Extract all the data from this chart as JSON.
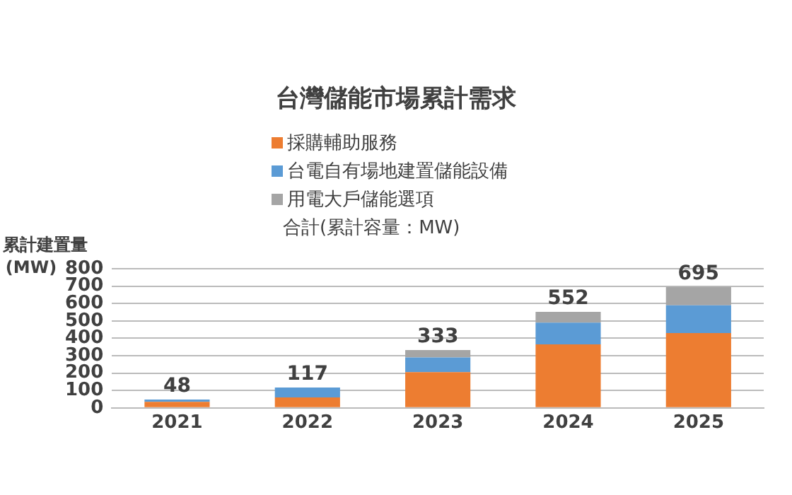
{
  "chart_data": {
    "type": "bar",
    "title": "台灣儲能市場累計需求",
    "ylabel": "累計建置量\n(MW)",
    "annotations": [
      "合計(累計容量：MW)"
    ],
    "categories": [
      "2021",
      "2022",
      "2023",
      "2024",
      "2025"
    ],
    "stacked": true,
    "series": [
      {
        "name": "採購輔助服務",
        "color": "#ed7d31",
        "values": [
          35,
          60,
          205,
          365,
          430
        ]
      },
      {
        "name": "台電自有場地建置儲能設備",
        "color": "#5b9bd5",
        "values": [
          13,
          57,
          85,
          125,
          160
        ]
      },
      {
        "name": "用電大戶儲能選項",
        "color": "#a5a5a5",
        "values": [
          0,
          0,
          43,
          62,
          105
        ]
      }
    ],
    "totals": [
      "48",
      "117",
      "333",
      "552",
      "695"
    ],
    "ylim": [
      0,
      800
    ],
    "yticks": [
      0,
      100,
      200,
      300,
      400,
      500,
      600,
      700,
      800
    ],
    "grid": "y",
    "legend": "top"
  }
}
